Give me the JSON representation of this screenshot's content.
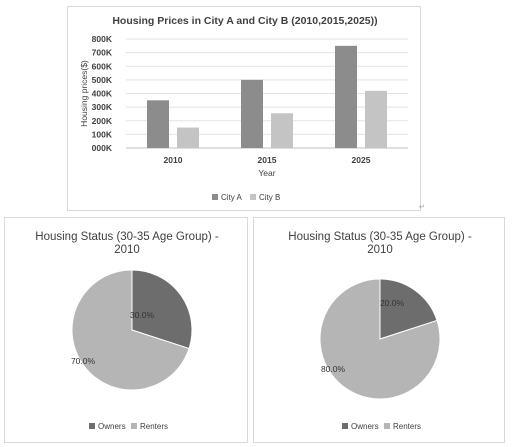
{
  "chart_data": [
    {
      "type": "bar",
      "title": "Housing Prices in City A and City B (2010,2015,2025))",
      "xlabel": "Year",
      "ylabel": "Housing  prices($)",
      "categories": [
        "2010",
        "2015",
        "2025"
      ],
      "series": [
        {
          "name": "City A",
          "values": [
            350000,
            500000,
            750000
          ],
          "color": "#8c8c8c"
        },
        {
          "name": "City B",
          "values": [
            150000,
            255000,
            420000
          ],
          "color": "#c4c4c4"
        }
      ],
      "ylim": [
        0,
        800000
      ],
      "yticks": [
        0,
        100000,
        200000,
        300000,
        400000,
        500000,
        600000,
        700000,
        800000
      ],
      "ytick_labels": [
        "000K",
        "100K",
        "200K",
        "300K",
        "400K",
        "500K",
        "600K",
        "700K",
        "800K"
      ],
      "grid": true,
      "legend_position": "bottom"
    },
    {
      "type": "pie",
      "title": "Housing Status (30-35 Age Group) - 2010",
      "labels": [
        "Owners",
        "Renters"
      ],
      "values": [
        30.0,
        70.0
      ],
      "data_labels": [
        "30.0%",
        "70.0%"
      ],
      "colors": [
        "#6d6d6d",
        "#b5b5b5"
      ],
      "legend_position": "bottom"
    },
    {
      "type": "pie",
      "title": "Housing Status (30-35 Age Group) - 2010",
      "labels": [
        "Owners",
        "Renters"
      ],
      "values": [
        20.0,
        80.0
      ],
      "data_labels": [
        "20.0%",
        "80.0%"
      ],
      "colors": [
        "#6d6d6d",
        "#b5b5b5"
      ],
      "legend_position": "bottom"
    }
  ]
}
